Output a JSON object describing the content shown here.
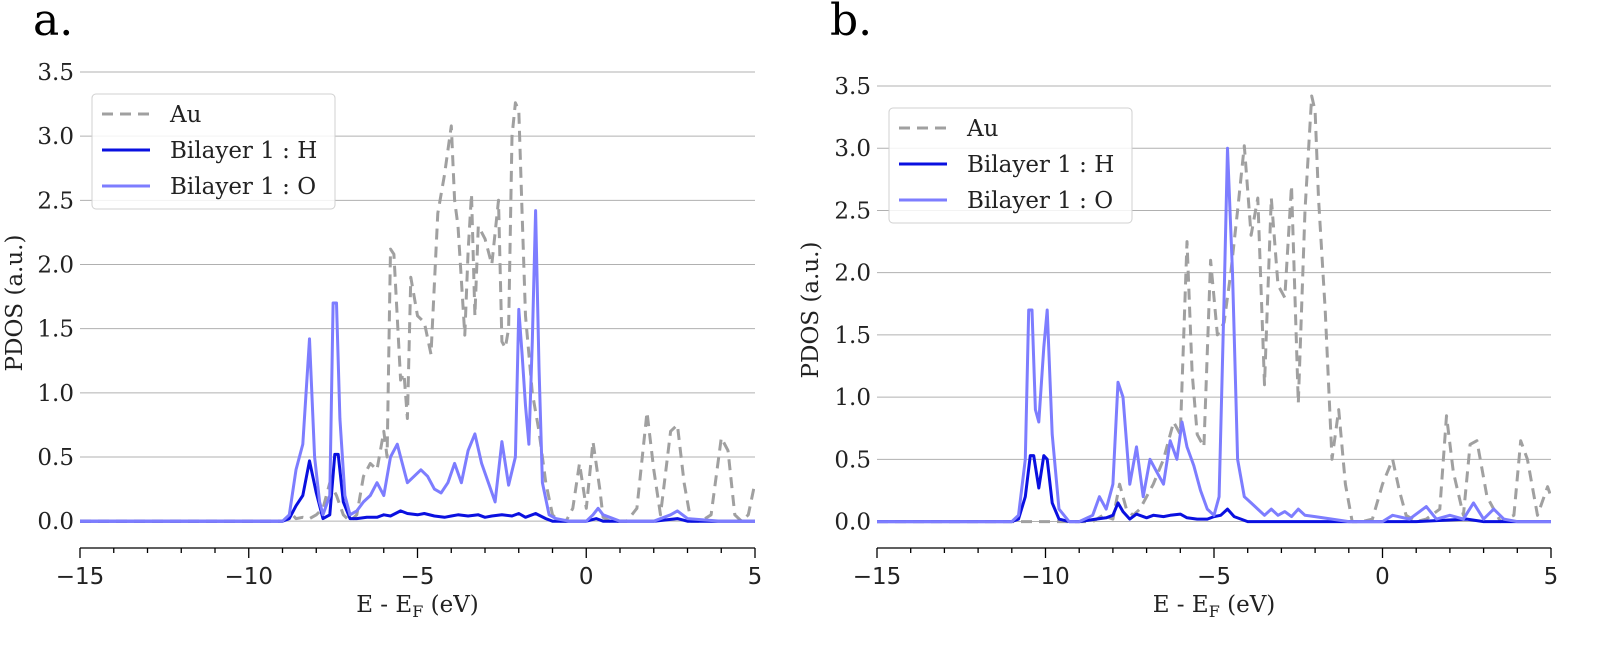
{
  "chart_data": [
    {
      "type": "line",
      "panel_label": "a.",
      "xlabel": "E - E",
      "xlabel_sub": "F",
      "xlabel_unit": " (eV)",
      "ylabel": "PDOS (a.u.)",
      "xlim": [
        -15,
        5
      ],
      "ylim": [
        -0.1,
        3.5
      ],
      "xticks": [
        -15,
        -10,
        -5,
        0,
        5
      ],
      "xtick_labels": [
        "−15",
        "−10",
        "−5",
        "0",
        "5"
      ],
      "yticks": [
        0.0,
        0.5,
        1.0,
        1.5,
        2.0,
        2.5,
        3.0,
        3.5
      ],
      "ytick_labels": [
        "0.0",
        "0.5",
        "1.0",
        "1.5",
        "2.0",
        "2.5",
        "3.0",
        "3.5"
      ],
      "grid": "horizontal",
      "legend_position": "top-left",
      "series": [
        {
          "name": "Au",
          "color": "#a0a0a0",
          "dash": "dashed",
          "x": [
            -15,
            -9.0,
            -8.7,
            -8.6,
            -8.4,
            -8.2,
            -8.0,
            -7.8,
            -7.6,
            -7.4,
            -7.2,
            -7.0,
            -6.8,
            -6.6,
            -6.4,
            -6.2,
            -6.0,
            -5.9,
            -5.8,
            -5.7,
            -5.5,
            -5.4,
            -5.3,
            -5.2,
            -5.0,
            -4.8,
            -4.6,
            -4.4,
            -4.2,
            -4.0,
            -3.9,
            -3.8,
            -3.6,
            -3.5,
            -3.4,
            -3.3,
            -3.2,
            -3.0,
            -2.8,
            -2.6,
            -2.5,
            -2.4,
            -2.3,
            -2.2,
            -2.1,
            -2.0,
            -1.9,
            -1.8,
            -1.7,
            -1.6,
            -1.4,
            -1.2,
            -1.0,
            -0.8,
            -0.6,
            -0.4,
            -0.2,
            0.0,
            0.2,
            0.4,
            0.5,
            0.7,
            0.9,
            1.2,
            1.5,
            1.8,
            2.0,
            2.2,
            2.5,
            2.7,
            2.9,
            3.1,
            3.4,
            3.7,
            4.0,
            4.2,
            4.4,
            4.6,
            4.8,
            5.0
          ],
          "y": [
            0.0,
            0.0,
            0.05,
            0.02,
            0.03,
            0.02,
            0.05,
            0.1,
            0.3,
            0.2,
            0.05,
            0.0,
            0.05,
            0.35,
            0.45,
            0.4,
            0.7,
            0.5,
            2.12,
            2.08,
            1.1,
            1.15,
            0.8,
            1.9,
            1.6,
            1.55,
            1.3,
            2.4,
            2.7,
            3.08,
            2.5,
            2.3,
            1.45,
            2.1,
            2.55,
            1.6,
            2.3,
            2.2,
            2.0,
            2.5,
            1.4,
            1.35,
            1.5,
            3.0,
            3.26,
            3.2,
            2.4,
            1.6,
            1.3,
            1.0,
            0.7,
            0.3,
            0.05,
            0.0,
            0.0,
            0.1,
            0.45,
            0.1,
            0.62,
            0.25,
            0.03,
            0.0,
            0.0,
            0.0,
            0.1,
            0.85,
            0.4,
            0.05,
            0.7,
            0.75,
            0.3,
            0.0,
            0.0,
            0.05,
            0.65,
            0.55,
            0.05,
            0.0,
            0.05,
            0.3
          ]
        },
        {
          "name": "Bilayer 1 : H",
          "color": "#0a10e0",
          "dash": "solid",
          "x": [
            -15,
            -9.0,
            -8.8,
            -8.6,
            -8.4,
            -8.2,
            -8.0,
            -7.8,
            -7.6,
            -7.45,
            -7.35,
            -7.2,
            -7.0,
            -6.8,
            -6.5,
            -6.2,
            -6.0,
            -5.8,
            -5.5,
            -5.3,
            -5.0,
            -4.8,
            -4.5,
            -4.2,
            -4.0,
            -3.8,
            -3.5,
            -3.2,
            -3.0,
            -2.8,
            -2.5,
            -2.2,
            -2.0,
            -1.8,
            -1.5,
            -1.2,
            -1.0,
            0.0,
            0.3,
            0.5,
            1.0,
            2.0,
            2.7,
            3.0,
            4.0,
            5.0
          ],
          "y": [
            0.0,
            0.0,
            0.02,
            0.12,
            0.2,
            0.47,
            0.22,
            0.02,
            0.05,
            0.52,
            0.52,
            0.15,
            0.02,
            0.02,
            0.03,
            0.03,
            0.05,
            0.04,
            0.08,
            0.06,
            0.05,
            0.06,
            0.04,
            0.03,
            0.04,
            0.05,
            0.04,
            0.05,
            0.03,
            0.04,
            0.05,
            0.04,
            0.06,
            0.03,
            0.06,
            0.02,
            0.0,
            0.0,
            0.02,
            0.0,
            0.0,
            0.0,
            0.02,
            0.0,
            0.0,
            0.0
          ]
        },
        {
          "name": "Bilayer 1 : O",
          "color": "#7d7dff",
          "dash": "solid",
          "x": [
            -15,
            -9.0,
            -8.8,
            -8.6,
            -8.4,
            -8.2,
            -8.05,
            -7.9,
            -7.8,
            -7.6,
            -7.5,
            -7.4,
            -7.3,
            -7.15,
            -7.0,
            -6.8,
            -6.6,
            -6.4,
            -6.2,
            -6.0,
            -5.8,
            -5.6,
            -5.5,
            -5.3,
            -5.1,
            -4.9,
            -4.7,
            -4.5,
            -4.3,
            -4.1,
            -3.9,
            -3.7,
            -3.5,
            -3.3,
            -3.1,
            -2.9,
            -2.7,
            -2.5,
            -2.3,
            -2.1,
            -2.0,
            -1.9,
            -1.8,
            -1.7,
            -1.6,
            -1.5,
            -1.4,
            -1.3,
            -1.1,
            -0.9,
            -0.5,
            0.0,
            0.2,
            0.35,
            0.5,
            1.0,
            2.0,
            2.5,
            2.7,
            3.0,
            4.0,
            5.0
          ],
          "y": [
            0.0,
            0.0,
            0.05,
            0.4,
            0.6,
            1.42,
            0.5,
            0.15,
            0.05,
            0.2,
            1.7,
            1.7,
            0.8,
            0.2,
            0.05,
            0.08,
            0.15,
            0.2,
            0.3,
            0.2,
            0.5,
            0.6,
            0.5,
            0.3,
            0.35,
            0.4,
            0.35,
            0.25,
            0.22,
            0.3,
            0.45,
            0.3,
            0.55,
            0.68,
            0.45,
            0.3,
            0.15,
            0.62,
            0.28,
            0.5,
            1.65,
            1.3,
            0.9,
            0.6,
            1.4,
            2.42,
            1.2,
            0.3,
            0.05,
            0.02,
            0.0,
            0.0,
            0.05,
            0.1,
            0.05,
            0.0,
            0.0,
            0.05,
            0.08,
            0.02,
            0.0,
            0.0
          ]
        }
      ]
    },
    {
      "type": "line",
      "panel_label": "b.",
      "xlabel": "E - E",
      "xlabel_sub": "F",
      "xlabel_unit": " (eV)",
      "ylabel": "PDOS (a.u.)",
      "xlim": [
        -15,
        5
      ],
      "ylim": [
        -0.1,
        3.5
      ],
      "xticks": [
        -15,
        -10,
        -5,
        0,
        5
      ],
      "xtick_labels": [
        "−15",
        "−10",
        "−5",
        "0",
        "5"
      ],
      "yticks": [
        0.0,
        0.5,
        1.0,
        1.5,
        2.0,
        2.5,
        3.0,
        3.5
      ],
      "ytick_labels": [
        "0.0",
        "0.5",
        "1.0",
        "1.5",
        "2.0",
        "2.5",
        "3.0",
        "3.5"
      ],
      "grid": "horizontal",
      "legend_position": "top-left",
      "series": [
        {
          "name": "Au",
          "color": "#a0a0a0",
          "dash": "dashed",
          "x": [
            -15,
            -8.6,
            -8.3,
            -8.0,
            -7.8,
            -7.6,
            -7.4,
            -7.2,
            -7.0,
            -6.8,
            -6.5,
            -6.2,
            -6.0,
            -5.8,
            -5.65,
            -5.5,
            -5.3,
            -5.1,
            -4.9,
            -4.7,
            -4.5,
            -4.3,
            -4.1,
            -3.9,
            -3.7,
            -3.5,
            -3.3,
            -3.1,
            -2.9,
            -2.7,
            -2.5,
            -2.3,
            -2.1,
            -2.0,
            -1.9,
            -1.7,
            -1.5,
            -1.3,
            -1.1,
            -0.9,
            -0.6,
            -0.3,
            0.0,
            0.3,
            0.5,
            0.7,
            1.0,
            1.3,
            1.7,
            1.9,
            2.1,
            2.4,
            2.6,
            2.8,
            3.1,
            3.5,
            3.9,
            4.1,
            4.3,
            4.6,
            4.9,
            5.0
          ],
          "y": [
            0.0,
            0.0,
            0.05,
            0.02,
            0.3,
            0.1,
            0.05,
            0.1,
            0.2,
            0.3,
            0.5,
            0.8,
            0.7,
            2.25,
            1.2,
            0.7,
            0.6,
            2.1,
            1.5,
            1.6,
            2.0,
            2.5,
            3.02,
            2.3,
            2.6,
            1.1,
            2.6,
            1.9,
            1.8,
            2.7,
            0.95,
            2.5,
            3.42,
            3.3,
            2.6,
            1.7,
            0.5,
            0.9,
            0.3,
            0.0,
            0.0,
            0.02,
            0.3,
            0.5,
            0.25,
            0.05,
            0.0,
            0.02,
            0.1,
            0.85,
            0.4,
            0.05,
            0.62,
            0.65,
            0.2,
            0.0,
            0.05,
            0.65,
            0.5,
            0.05,
            0.28,
            0.2
          ]
        },
        {
          "name": "Bilayer 1 : H",
          "color": "#0a10e0",
          "dash": "solid",
          "x": [
            -15,
            -11.0,
            -10.8,
            -10.6,
            -10.45,
            -10.35,
            -10.2,
            -10.05,
            -9.95,
            -9.8,
            -9.6,
            -9.3,
            -9.0,
            -8.5,
            -8.2,
            -8.0,
            -7.85,
            -7.7,
            -7.5,
            -7.3,
            -7.0,
            -6.8,
            -6.5,
            -6.3,
            -6.0,
            -5.8,
            -5.5,
            -5.2,
            -5.0,
            -4.8,
            -4.6,
            -4.4,
            -4.2,
            -4.0,
            -3.5,
            -3.0,
            -2.0,
            0.0,
            1.0,
            2.5,
            3.0,
            5.0
          ],
          "y": [
            0.0,
            0.0,
            0.02,
            0.2,
            0.53,
            0.53,
            0.27,
            0.53,
            0.5,
            0.15,
            0.02,
            0.0,
            0.0,
            0.02,
            0.03,
            0.05,
            0.15,
            0.08,
            0.02,
            0.06,
            0.03,
            0.05,
            0.04,
            0.05,
            0.06,
            0.03,
            0.02,
            0.02,
            0.04,
            0.05,
            0.1,
            0.04,
            0.02,
            0.0,
            0.0,
            0.0,
            0.0,
            0.0,
            0.0,
            0.02,
            0.0,
            0.0
          ]
        },
        {
          "name": "Bilayer 1 : O",
          "color": "#7d7dff",
          "dash": "solid",
          "x": [
            -15,
            -11.0,
            -10.8,
            -10.6,
            -10.5,
            -10.4,
            -10.3,
            -10.2,
            -10.05,
            -9.95,
            -9.8,
            -9.6,
            -9.3,
            -9.0,
            -8.6,
            -8.4,
            -8.2,
            -8.0,
            -7.85,
            -7.7,
            -7.5,
            -7.3,
            -7.1,
            -6.9,
            -6.7,
            -6.5,
            -6.3,
            -6.1,
            -5.95,
            -5.8,
            -5.6,
            -5.4,
            -5.2,
            -5.0,
            -4.85,
            -4.7,
            -4.6,
            -4.45,
            -4.3,
            -4.1,
            -3.9,
            -3.7,
            -3.5,
            -3.3,
            -3.1,
            -2.9,
            -2.7,
            -2.5,
            -2.3,
            -2.0,
            -1.5,
            -1.0,
            0.0,
            0.3,
            0.8,
            1.3,
            1.6,
            2.0,
            2.4,
            2.7,
            3.0,
            3.3,
            3.6,
            4.0,
            5.0
          ],
          "y": [
            0.0,
            0.0,
            0.05,
            0.5,
            1.7,
            1.7,
            0.9,
            0.8,
            1.4,
            1.7,
            0.7,
            0.1,
            0.0,
            0.0,
            0.05,
            0.2,
            0.1,
            0.3,
            1.12,
            1.0,
            0.3,
            0.6,
            0.2,
            0.5,
            0.4,
            0.3,
            0.65,
            0.5,
            0.8,
            0.6,
            0.45,
            0.25,
            0.1,
            0.05,
            0.2,
            1.8,
            3.0,
            2.0,
            0.5,
            0.2,
            0.15,
            0.1,
            0.05,
            0.1,
            0.05,
            0.08,
            0.04,
            0.1,
            0.05,
            0.04,
            0.02,
            0.0,
            0.0,
            0.05,
            0.02,
            0.12,
            0.02,
            0.05,
            0.02,
            0.15,
            0.02,
            0.1,
            0.02,
            0.0,
            0.0
          ]
        }
      ]
    }
  ]
}
